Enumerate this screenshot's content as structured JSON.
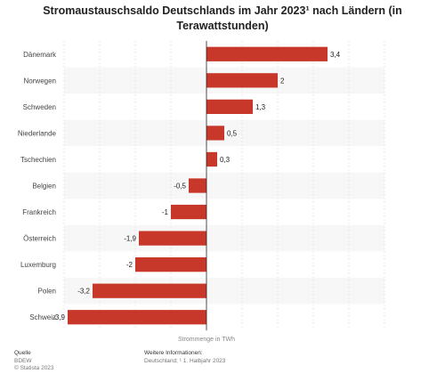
{
  "chart_data": {
    "type": "bar",
    "orientation": "horizontal",
    "title": "Stromaustauschsaldo Deutschlands im Jahr 2023¹ nach Ländern (in Terawattstunden)",
    "categories": [
      "Dänemark",
      "Norwegen",
      "Schweden",
      "Niederlande",
      "Tschechien",
      "Belgien",
      "Frankreich",
      "Österreich",
      "Luxemburg",
      "Polen",
      "Schweiz"
    ],
    "values": [
      3.4,
      2,
      1.3,
      0.5,
      0.3,
      -0.5,
      -1,
      -1.9,
      -2,
      -3.2,
      -3.9
    ],
    "value_labels": [
      "3,4",
      "2",
      "1,3",
      "0,5",
      "0,3",
      "-0,5",
      "-1",
      "-1,9",
      "-2",
      "-3,2",
      "-3,9"
    ],
    "xlabel": "Strommenge in TWh",
    "ylabel": "",
    "xlim": [
      -4,
      5
    ],
    "grid": true,
    "bar_color": "#c8382a"
  },
  "footer": {
    "source_heading": "Quelle",
    "source_name": "BDEW",
    "copyright": "© Statista 2023",
    "info_heading": "Weitere Informationen:",
    "info_text": "Deutschland; ¹ 1. Halbjahr 2023"
  }
}
